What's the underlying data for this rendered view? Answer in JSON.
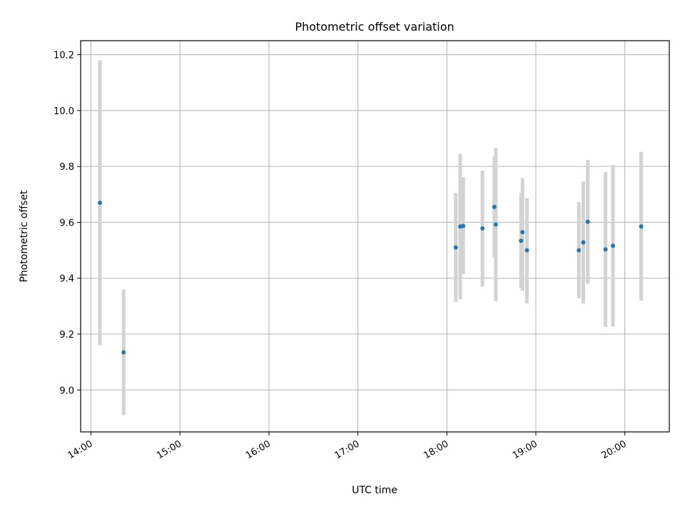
{
  "chart_data": {
    "type": "scatter",
    "title": "Photometric offset variation",
    "xlabel": "UTC time",
    "ylabel": "Photometric offset",
    "x_unit": "UTC time (HH:MM)",
    "xlim": [
      "13:53",
      "20:30"
    ],
    "ylim": [
      8.85,
      10.25
    ],
    "x_ticks": [
      "14:00",
      "15:00",
      "16:00",
      "17:00",
      "18:00",
      "19:00",
      "20:00"
    ],
    "y_ticks": [
      9.0,
      9.2,
      9.4,
      9.6,
      9.8,
      10.0,
      10.2
    ],
    "y_tick_labels": [
      "9.0",
      "9.2",
      "9.4",
      "9.6",
      "9.8",
      "10.0",
      "10.2"
    ],
    "grid": true,
    "marker_color": "#1f77b4",
    "errorbar_color": "#d3d3d3",
    "points": [
      {
        "time": "14:06",
        "y": 9.67,
        "ylow": 9.16,
        "yhigh": 10.18
      },
      {
        "time": "14:22",
        "y": 9.135,
        "ylow": 8.91,
        "yhigh": 9.36
      },
      {
        "time": "18:06",
        "y": 9.51,
        "ylow": 9.315,
        "yhigh": 9.705
      },
      {
        "time": "18:09",
        "y": 9.585,
        "ylow": 9.325,
        "yhigh": 9.845
      },
      {
        "time": "18:11",
        "y": 9.587,
        "ylow": 9.415,
        "yhigh": 9.762
      },
      {
        "time": "18:24",
        "y": 9.578,
        "ylow": 9.37,
        "yhigh": 9.785
      },
      {
        "time": "18:32",
        "y": 9.655,
        "ylow": 9.475,
        "yhigh": 9.835
      },
      {
        "time": "18:33",
        "y": 9.592,
        "ylow": 9.318,
        "yhigh": 9.866
      },
      {
        "time": "18:50",
        "y": 9.534,
        "ylow": 9.365,
        "yhigh": 9.705
      },
      {
        "time": "18:51",
        "y": 9.565,
        "ylow": 9.355,
        "yhigh": 9.758
      },
      {
        "time": "18:54",
        "y": 9.5,
        "ylow": 9.31,
        "yhigh": 9.686
      },
      {
        "time": "19:29",
        "y": 9.5,
        "ylow": 9.328,
        "yhigh": 9.672
      },
      {
        "time": "19:32",
        "y": 9.528,
        "ylow": 9.31,
        "yhigh": 9.746
      },
      {
        "time": "19:35",
        "y": 9.602,
        "ylow": 9.38,
        "yhigh": 9.823
      },
      {
        "time": "19:47",
        "y": 9.503,
        "ylow": 9.225,
        "yhigh": 9.78
      },
      {
        "time": "19:52",
        "y": 9.516,
        "ylow": 9.227,
        "yhigh": 9.805
      },
      {
        "time": "20:11",
        "y": 9.585,
        "ylow": 9.32,
        "yhigh": 9.852
      }
    ]
  }
}
